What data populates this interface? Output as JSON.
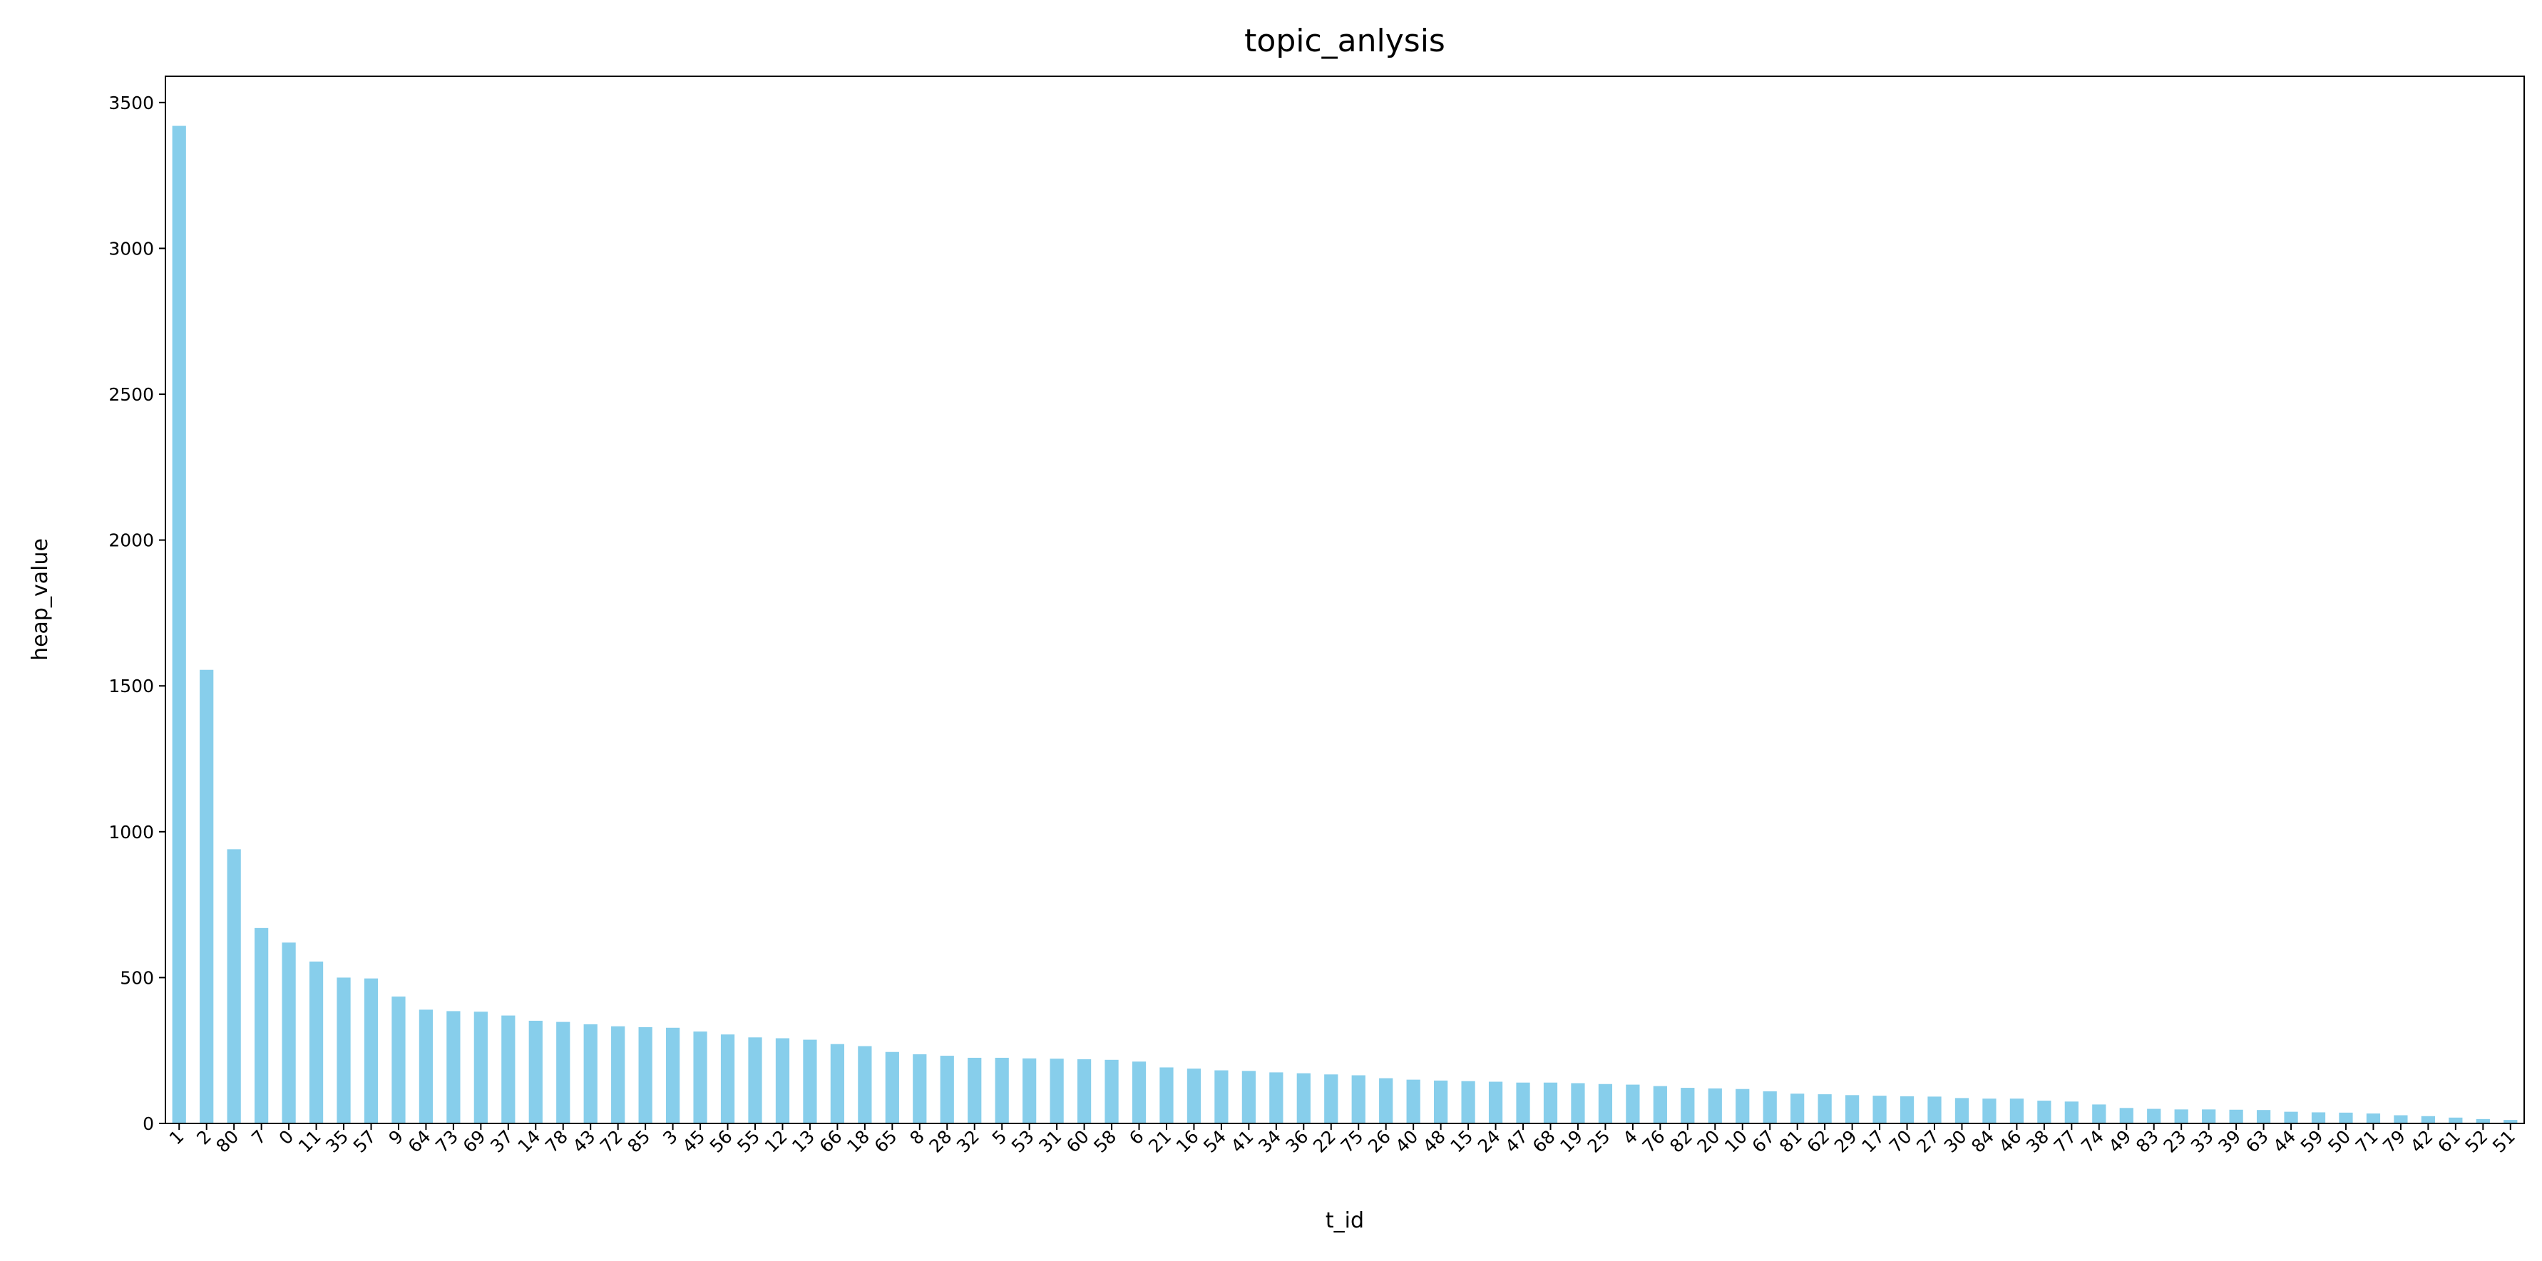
{
  "chart_data": {
    "type": "bar",
    "title": "topic_anlysis",
    "x_label": "t_id",
    "y_label": "heap_value",
    "categories": [
      "1",
      "2",
      "80",
      "7",
      "0",
      "11",
      "35",
      "57",
      "9",
      "64",
      "73",
      "69",
      "37",
      "14",
      "78",
      "43",
      "72",
      "85",
      "3",
      "45",
      "56",
      "55",
      "12",
      "13",
      "66",
      "18",
      "65",
      "8",
      "28",
      "32",
      "5",
      "53",
      "31",
      "60",
      "58",
      "6",
      "21",
      "16",
      "54",
      "41",
      "34",
      "36",
      "22",
      "75",
      "26",
      "40",
      "48",
      "15",
      "24",
      "47",
      "68",
      "19",
      "25",
      "4",
      "76",
      "82",
      "20",
      "10",
      "67",
      "81",
      "62",
      "29",
      "17",
      "70",
      "27",
      "30",
      "84",
      "46",
      "38",
      "77",
      "74",
      "49",
      "83",
      "23",
      "33",
      "39",
      "63",
      "44",
      "59",
      "50",
      "71",
      "79",
      "42",
      "61",
      "52",
      "51"
    ],
    "values": [
      3420,
      1555,
      940,
      670,
      620,
      555,
      500,
      497,
      435,
      390,
      385,
      383,
      370,
      352,
      348,
      340,
      333,
      330,
      328,
      315,
      305,
      295,
      292,
      287,
      272,
      265,
      245,
      237,
      232,
      225,
      225,
      223,
      222,
      220,
      218,
      212,
      192,
      188,
      182,
      180,
      175,
      172,
      168,
      165,
      155,
      150,
      147,
      145,
      143,
      140,
      140,
      138,
      135,
      133,
      128,
      122,
      120,
      118,
      110,
      102,
      100,
      97,
      95,
      93,
      92,
      87,
      85,
      85,
      78,
      75,
      65,
      53,
      50,
      48,
      48,
      47,
      46,
      40,
      38,
      37,
      34,
      28,
      25,
      20,
      15,
      12
    ],
    "color": "#87ceeb",
    "ylim": [
      0,
      3590
    ],
    "yticks": [
      0,
      500,
      1000,
      1500,
      2000,
      2500,
      3000,
      3500
    ],
    "grid": false
  }
}
